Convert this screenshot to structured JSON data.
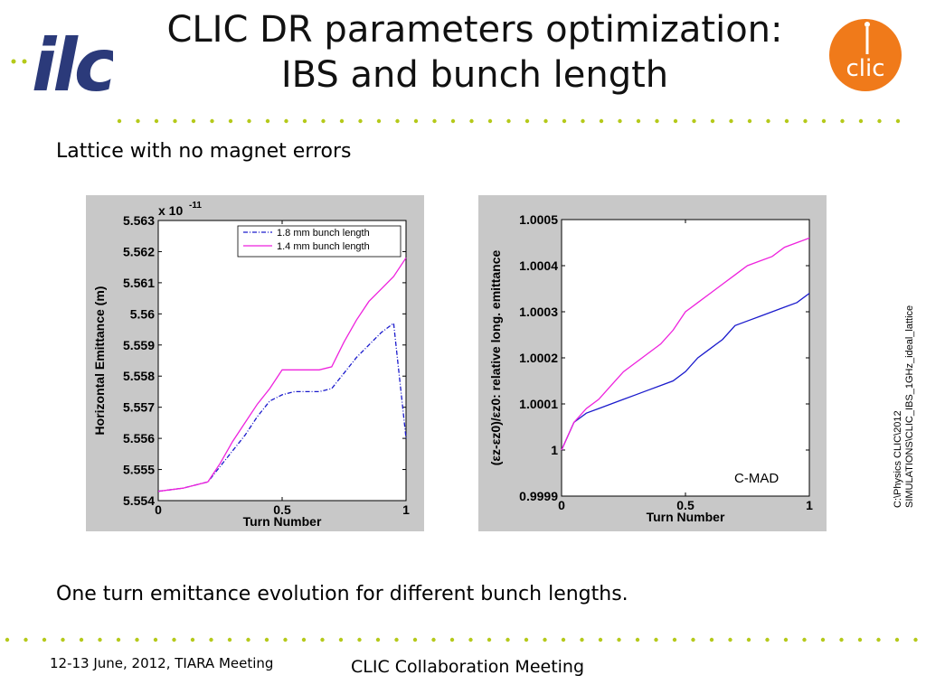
{
  "slide": {
    "title_line1": "CLIC DR parameters optimization:",
    "title_line2": "IBS and bunch length",
    "subtitle": "Lattice with no magnet errors",
    "caption": "One turn emittance evolution for different bunch lengths.",
    "footer_left": "12-13 June, 2012, TIARA Meeting",
    "footer_center": "CLIC Collaboration Meeting",
    "side_note_line1": "C:\\Physics CLIC\\2012",
    "side_note_line2": "SIMULATIONS\\CLIC_IBS_1GHz_ideal_lattice",
    "logo_left_text": "ilc",
    "logo_right_text": "clic",
    "colors": {
      "dots": "#b5c91a",
      "ilc_blue": "#2b3a7a",
      "clic_orange": "#f07a1a",
      "series_blue": "#1a1acc",
      "series_magenta": "#ee22dd"
    }
  },
  "chart_data": [
    {
      "type": "line",
      "exponent_label": "x 10",
      "exponent_power": "-11",
      "ylabel": "Horizontal Emittance (m)",
      "xlabel": "Turn Number",
      "xlim": [
        0,
        1
      ],
      "ylim": [
        5.554,
        5.563
      ],
      "x_ticks": [
        0,
        0.5,
        1
      ],
      "x_tick_labels": [
        "0",
        "0.5",
        "1"
      ],
      "y_ticks": [
        5.554,
        5.555,
        5.556,
        5.557,
        5.558,
        5.559,
        5.56,
        5.561,
        5.562,
        5.563
      ],
      "y_tick_labels": [
        "5.554",
        "5.555",
        "5.556",
        "5.557",
        "5.558",
        "5.559",
        "5.56",
        "5.561",
        "5.562",
        "5.563"
      ],
      "legend_position": "top-right",
      "series": [
        {
          "name": "1.8 mm bunch length",
          "color": "#1a1acc",
          "style": "dashdot",
          "x": [
            0,
            0.1,
            0.2,
            0.25,
            0.3,
            0.35,
            0.4,
            0.45,
            0.5,
            0.55,
            0.6,
            0.65,
            0.7,
            0.75,
            0.8,
            0.85,
            0.9,
            0.95,
            1.0
          ],
          "y": [
            5.5543,
            5.5544,
            5.5546,
            5.5551,
            5.5556,
            5.5561,
            5.5567,
            5.5572,
            5.5574,
            5.5575,
            5.5575,
            5.5575,
            5.5576,
            5.5581,
            5.5586,
            5.559,
            5.5594,
            5.5597,
            5.556
          ]
        },
        {
          "name": "1.4 mm bunch length",
          "color": "#ee22dd",
          "style": "solid",
          "x": [
            0,
            0.1,
            0.2,
            0.25,
            0.3,
            0.35,
            0.4,
            0.45,
            0.5,
            0.55,
            0.6,
            0.65,
            0.7,
            0.75,
            0.8,
            0.85,
            0.9,
            0.95,
            1.0
          ],
          "y": [
            5.5543,
            5.5544,
            5.5546,
            5.5552,
            5.5559,
            5.5565,
            5.5571,
            5.5576,
            5.5582,
            5.5582,
            5.5582,
            5.5582,
            5.5583,
            5.5591,
            5.5598,
            5.5604,
            5.5608,
            5.5612,
            5.5618
          ]
        }
      ]
    },
    {
      "type": "line",
      "ylabel": "(εz-εz0)/εz0: relative long. emittance",
      "xlabel": "Turn Number",
      "xlim": [
        0,
        1
      ],
      "ylim": [
        0.9999,
        1.0005
      ],
      "x_ticks": [
        0,
        0.5,
        1
      ],
      "x_tick_labels": [
        "0",
        "0.5",
        "1"
      ],
      "y_ticks": [
        0.9999,
        1.0,
        1.0001,
        1.0002,
        1.0003,
        1.0004,
        1.0005
      ],
      "y_tick_labels": [
        "0.9999",
        "1",
        "1.0001",
        "1.0002",
        "1.0003",
        "1.0004",
        "1.0005"
      ],
      "annotation": "C-MAD",
      "series": [
        {
          "color": "#1a1acc",
          "style": "solid",
          "x": [
            0,
            0.05,
            0.1,
            0.15,
            0.2,
            0.25,
            0.3,
            0.35,
            0.4,
            0.45,
            0.5,
            0.55,
            0.6,
            0.65,
            0.7,
            0.75,
            0.8,
            0.85,
            0.9,
            0.95,
            1.0
          ],
          "y": [
            1.0,
            1.00006,
            1.00008,
            1.00009,
            1.0001,
            1.00011,
            1.00012,
            1.00013,
            1.00014,
            1.00015,
            1.00017,
            1.0002,
            1.00022,
            1.00024,
            1.00027,
            1.00028,
            1.00029,
            1.0003,
            1.00031,
            1.00032,
            1.00034
          ]
        },
        {
          "color": "#ee22dd",
          "style": "solid",
          "x": [
            0,
            0.05,
            0.1,
            0.15,
            0.2,
            0.25,
            0.3,
            0.35,
            0.4,
            0.45,
            0.5,
            0.55,
            0.6,
            0.65,
            0.7,
            0.75,
            0.8,
            0.85,
            0.9,
            0.95,
            1.0
          ],
          "y": [
            1.0,
            1.00006,
            1.00009,
            1.00011,
            1.00014,
            1.00017,
            1.00019,
            1.00021,
            1.00023,
            1.00026,
            1.0003,
            1.00032,
            1.00034,
            1.00036,
            1.00038,
            1.0004,
            1.00041,
            1.00042,
            1.00044,
            1.00045,
            1.00046
          ]
        }
      ]
    }
  ]
}
